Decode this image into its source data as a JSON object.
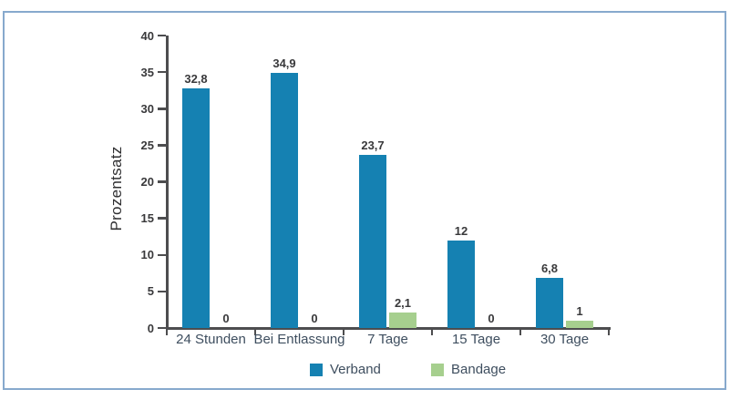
{
  "chart_data": {
    "type": "bar",
    "categories": [
      "24 Stunden",
      "Bei Entlassung",
      "7 Tage",
      "15 Tage",
      "30 Tage"
    ],
    "series": [
      {
        "name": "Verband",
        "color": "#1581b2",
        "values": [
          32.8,
          34.9,
          23.7,
          12,
          6.8
        ],
        "labels": [
          "32,8",
          "34,9",
          "23,7",
          "12",
          "6,8"
        ]
      },
      {
        "name": "Bandage",
        "color": "#a6cf8e",
        "values": [
          0,
          0,
          2.1,
          0,
          1
        ],
        "labels": [
          "0",
          "0",
          "2,1",
          "0",
          "1"
        ]
      }
    ],
    "title": "",
    "xlabel": "",
    "ylabel": "Prozentsatz",
    "ylim": [
      0,
      40
    ],
    "yticks": [
      "0",
      "5",
      "10",
      "15",
      "20",
      "25",
      "30",
      "35",
      "40"
    ],
    "grid": false,
    "legend_position": "bottom"
  },
  "colors": {
    "frame_border": "#87a9cd",
    "axis": "#4d4d4f",
    "value_label_text": "#39393b",
    "category_text": "#3e4e5f",
    "background": "#ffffff"
  }
}
